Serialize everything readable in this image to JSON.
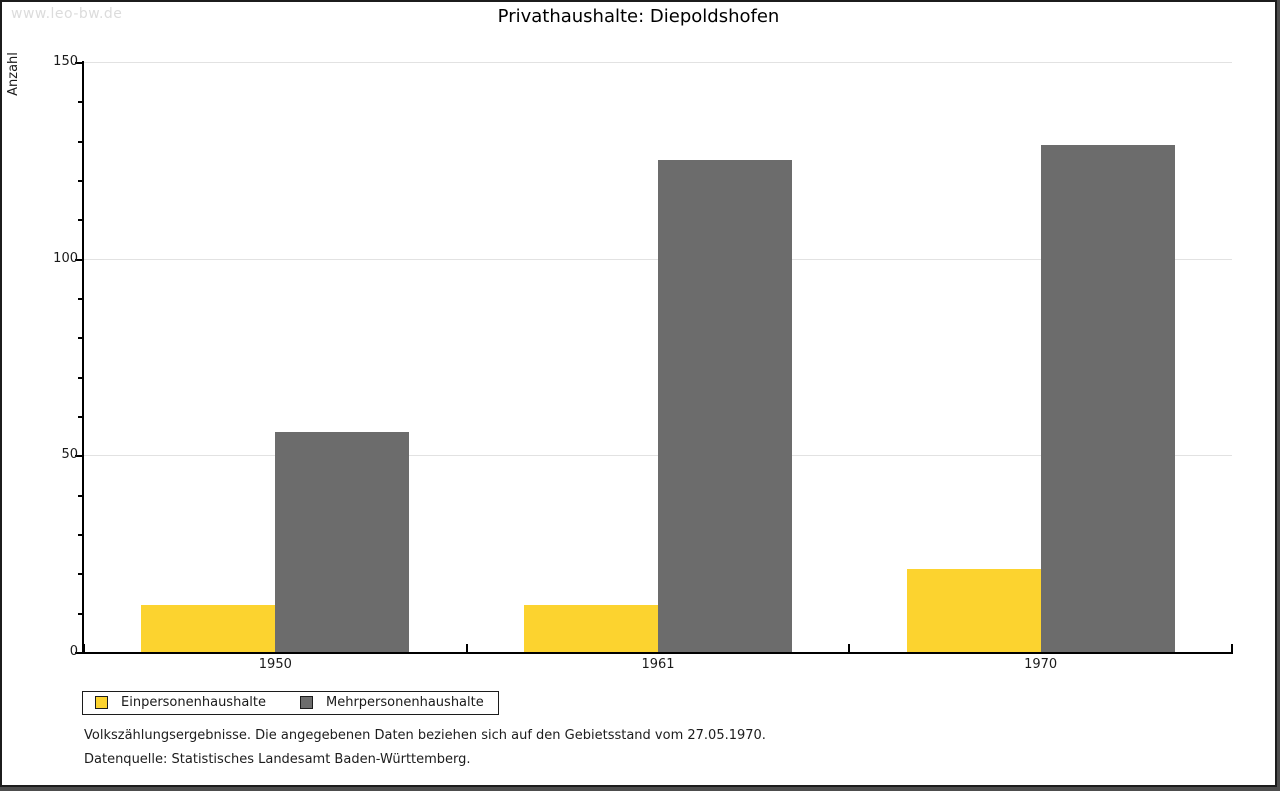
{
  "watermark": "www.leo-bw.de",
  "title": "Privathaushalte: Diepoldshofen",
  "chart_data": {
    "type": "bar",
    "title": "Privathaushalte: Diepoldshofen",
    "categories": [
      "1950",
      "1961",
      "1970"
    ],
    "series": [
      {
        "name": "Einpersonenhaushalte",
        "color": "#FCD32F",
        "values": [
          12,
          12,
          21
        ]
      },
      {
        "name": "Mehrpersonenhaushalte",
        "color": "#6C6C6C",
        "values": [
          56,
          125,
          129
        ]
      }
    ],
    "xlabel": "",
    "ylabel": "Anzahl",
    "ylim": [
      0,
      150
    ],
    "ytick_major_step": 50,
    "ytick_minor_step": 10,
    "grid": "horizontal-major",
    "legend_position": "bottom-left"
  },
  "footnotes": [
    "Volkszählungsergebnisse. Die angegebenen Daten beziehen sich auf den Gebietsstand vom 27.05.1970.",
    "Datenquelle: Statistisches Landesamt Baden-Württemberg."
  ]
}
